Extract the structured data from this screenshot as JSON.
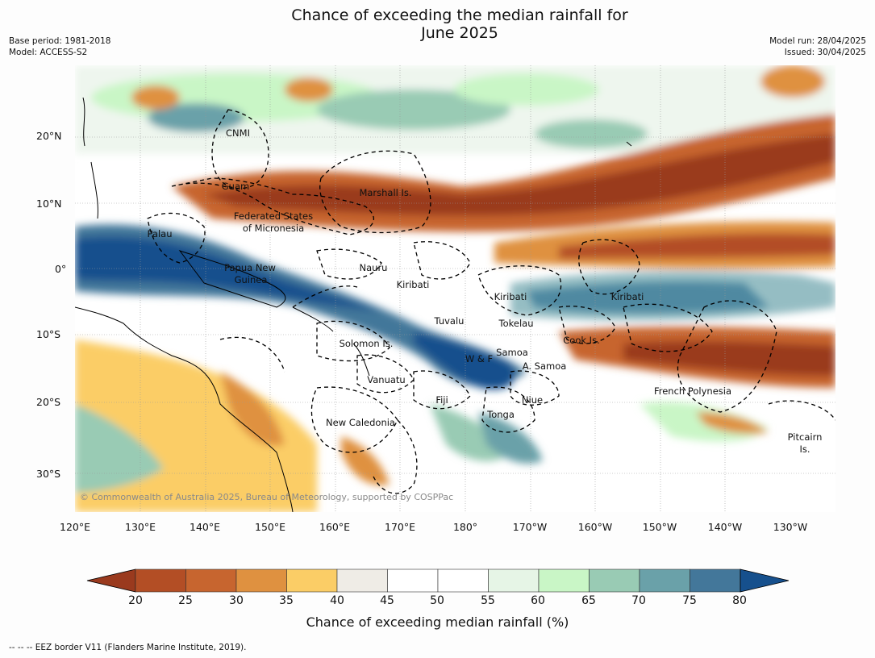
{
  "title_line1": "Chance of exceeding the median rainfall for",
  "title_line2": "June 2025",
  "base_period": "Base period: 1981-2018",
  "model": "Model: ACCESS-S2",
  "model_run": "Model run: 28/04/2025",
  "issued": "Issued: 30/04/2025",
  "copyright": "© Commonwealth of Australia 2025, Bureau of Meteorology, supported by COSPPac",
  "footnote": "--  --  -- EEZ border V11 (Flanders Marine Institute, 2019).",
  "lat_labels": [
    "20°N",
    "10°N",
    "0°",
    "10°S",
    "20°S",
    "30°S"
  ],
  "lon_labels": [
    "120°E",
    "130°E",
    "140°E",
    "150°E",
    "160°E",
    "170°E",
    "180°",
    "170°W",
    "160°W",
    "150°W",
    "140°W",
    "130°W"
  ],
  "colorbar": {
    "label": "Chance of exceeding median rainfall (%)",
    "ticks": [
      "20",
      "25",
      "30",
      "35",
      "40",
      "45",
      "50",
      "55",
      "60",
      "65",
      "70",
      "75",
      "80"
    ],
    "colors": [
      "#9a3a1e",
      "#b34e25",
      "#c7652f",
      "#df9140",
      "#fbcd66",
      "#efece6",
      "#ffffff",
      "#ffffff",
      "#e6f5e6",
      "#c9f6c6",
      "#99cbb4",
      "#6aa1a9",
      "#43779a",
      "#16508d"
    ]
  },
  "places": {
    "cnmi": "CNMI",
    "guam": "Guam",
    "marshall": "Marshall Is.",
    "fsm1": "Federated States",
    "fsm2": "of Micronesia",
    "palau": "Palau",
    "png1": "Papua New",
    "png2": "Guinea",
    "nauru": "Nauru",
    "kiribati1": "Kiribati",
    "kiribati2": "Kiribati",
    "kiribati3": "Kiribati",
    "tuvalu": "Tuvalu",
    "tokelau": "Tokelau",
    "cook": "Cook Is.",
    "solomon": "Solomon Is.",
    "samoa": "Samoa",
    "wf": "W & F",
    "asamoa": "A. Samoa",
    "vanuatu": "Vanuatu",
    "fiji": "Fiji",
    "niue": "Niue",
    "tonga": "Tonga",
    "frenchpoly": "French Polynesia",
    "newcal": "New Caledonia",
    "pitcairn1": "Pitcairn",
    "pitcairn2": "Is."
  }
}
